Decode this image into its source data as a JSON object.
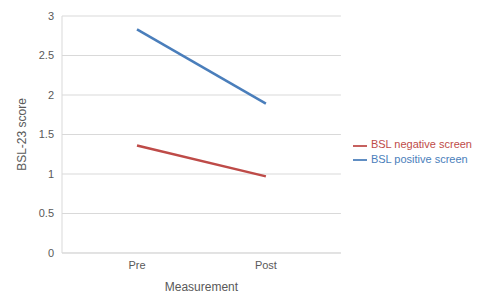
{
  "chart_data": {
    "type": "line",
    "x_label": "Measurement",
    "y_label": "BSL-23 score",
    "categories": [
      "Pre",
      "Post"
    ],
    "series": [
      {
        "name": "BSL positive screen",
        "color": "#4a7ebb",
        "values": [
          2.83,
          1.89
        ]
      },
      {
        "name": "BSL negative screen",
        "color": "#be4b48",
        "values": [
          1.36,
          0.97
        ]
      }
    ],
    "ylim": [
      0,
      3
    ],
    "yticks": [
      0,
      0.5,
      1,
      1.5,
      2,
      2.5,
      3
    ],
    "grid": true,
    "legend": "right"
  }
}
